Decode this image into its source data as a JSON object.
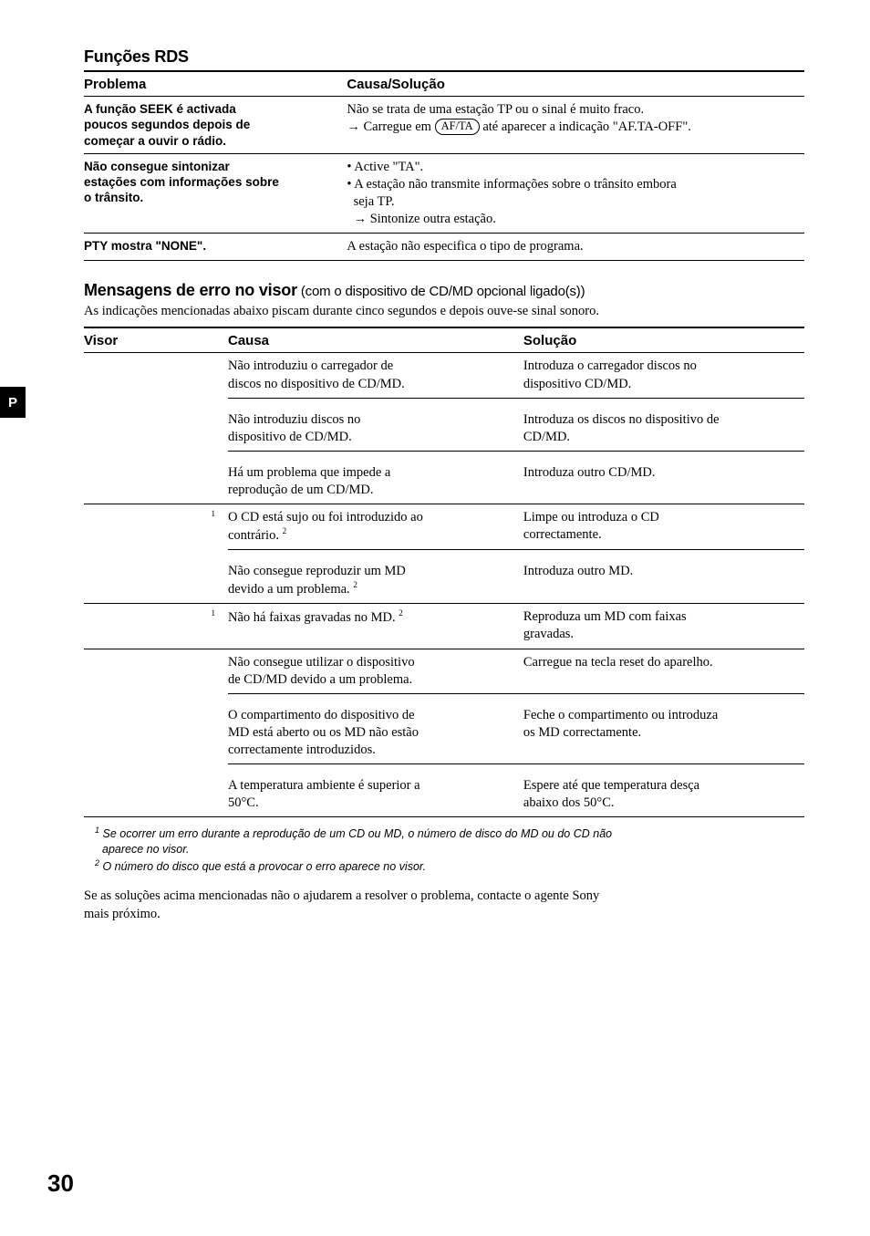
{
  "sideTab": "P",
  "pageNumber": "30",
  "section1": {
    "title": "Funções RDS",
    "headers": [
      "Problema",
      "Causa/Solução"
    ],
    "col1Width": "36.5%",
    "rows": [
      {
        "problem_l1": "A função SEEK é activada",
        "problem_l2": "poucos segundos depois de",
        "problem_l3": "começar a ouvir o rádio.",
        "cause_l1": "Não se trata de uma estação TP ou o sinal é muito fraco.",
        "cause_arrow": "→",
        "cause_l2a": " Carregue em ",
        "cause_keycap": "AF/TA",
        "cause_l2b": " até aparecer a indicação \"AF.TA-OFF\"."
      },
      {
        "problem_l1": "Não consegue sintonizar",
        "problem_l2": "estações com informações sobre",
        "problem_l3": "o trânsito.",
        "cause_b1": "• Active \"TA\".",
        "cause_b2a": "• A estação não transmite informações sobre o trânsito embora",
        "cause_b2b": "seja TP.",
        "cause_arrow": "→",
        "cause_b2c": " Sintonize outra estação."
      },
      {
        "problem_l1": "PTY mostra \"NONE\".",
        "cause_l1": "A estação não especifica o tipo de programa."
      }
    ]
  },
  "section2": {
    "title_bold": "Mensagens de erro no visor",
    "title_light": " (com o dispositivo de CD/MD opcional ligado(s))",
    "preNote": "As indicações mencionadas abaixo piscam durante cinco segundos e depois ouve-se sinal sonoro.",
    "headers": [
      "Visor",
      "Causa",
      "Solução"
    ],
    "col1Width": "20%",
    "col2Width": "41%",
    "rows": [
      {
        "visor": "",
        "cause_l1": "Não introduziu o carregador de",
        "cause_l2": "discos no dispositivo de CD/MD.",
        "sol_l1": "Introduza o carregador discos no",
        "sol_l2": "dispositivo CD/MD."
      },
      {
        "visor": "",
        "cause_l1": "Não introduziu discos no",
        "cause_l2": "dispositivo de CD/MD.",
        "sol_l1": "Introduza os discos no dispositivo de",
        "sol_l2": "CD/MD."
      },
      {
        "visor": "",
        "cause_l1": "Há um problema que impede a",
        "cause_l2": "reprodução de um CD/MD.",
        "sol_l1": "Introduza outro CD/MD."
      },
      {
        "visor_sup": "1",
        "cause_l1": "O CD está sujo ou foi introduzido ao",
        "cause_l2a": "contrário. ",
        "cause_sup": "2",
        "sol_l1": "Limpe ou introduza o CD",
        "sol_l2": "correctamente."
      },
      {
        "visor": "",
        "cause_l1": "Não consegue reproduzir um MD",
        "cause_l2a": "devido a um problema. ",
        "cause_sup": "2",
        "sol_l1": "Introduza outro MD."
      },
      {
        "visor_sup": "1",
        "cause_l1a": "Não há faixas gravadas no MD. ",
        "cause_sup": "2",
        "sol_l1": "Reproduza um MD com faixas",
        "sol_l2": "gravadas."
      },
      {
        "visor": "",
        "cause_l1": "Não consegue utilizar o dispositivo",
        "cause_l2": "de CD/MD devido a um problema.",
        "sol_l1": "Carregue na tecla reset do aparelho."
      },
      {
        "visor": "",
        "cause_l1": "O compartimento do dispositivo de",
        "cause_l2": "MD está aberto ou os MD não estão",
        "cause_l3": "correctamente introduzidos.",
        "sol_l1": "Feche o compartimento ou introduza",
        "sol_l2": "os MD correctamente."
      },
      {
        "visor": "",
        "cause_l1": "A temperatura ambiente é superior a",
        "cause_l2": "50°C.",
        "sol_l1": "Espere até que temperatura desça",
        "sol_l2": "abaixo dos 50°C."
      }
    ]
  },
  "footnotes": {
    "fn1_sup": "1",
    "fn1_l1": " Se ocorrer um erro durante a reprodução de um CD ou MD, o número de disco do MD ou do CD não",
    "fn1_l2": "aparece no visor.",
    "fn2_sup": "2",
    "fn2": " O número do disco que está a provocar o erro aparece no visor."
  },
  "closing_l1": "Se as soluções acima mencionadas não o ajudarem a resolver o problema, contacte o agente Sony",
  "closing_l2": "mais próximo."
}
